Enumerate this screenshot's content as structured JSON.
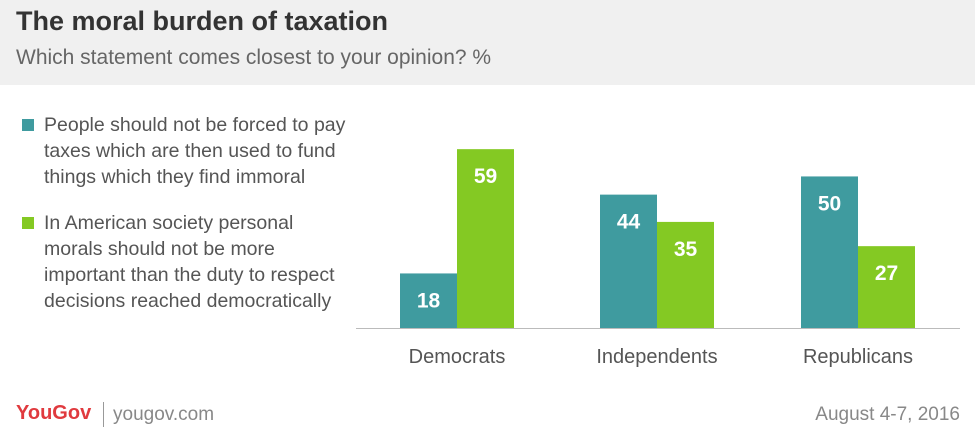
{
  "header": {
    "title": "The moral burden of taxation",
    "subtitle": "Which statement comes closest to your opinion? %"
  },
  "footer": {
    "brand": "YouGov",
    "site": "yougov.com",
    "date": "August 4-7, 2016"
  },
  "colors": {
    "teal": "#3f9b9f",
    "green": "#84c923",
    "header_bg": "#f0f0f0",
    "brand_red": "#e03a3e"
  },
  "chart_data": {
    "type": "bar",
    "title": "The moral burden of taxation",
    "subtitle": "Which statement comes closest to your opinion? %",
    "categories": [
      "Democrats",
      "Independents",
      "Republicans"
    ],
    "series": [
      {
        "name": "People should not be forced to pay taxes which are then used to fund things which they find immoral",
        "color": "#3f9b9f",
        "values": [
          18,
          44,
          50
        ]
      },
      {
        "name": "In American society personal morals should not be more important than the duty to respect decisions reached democratically",
        "color": "#84c923",
        "values": [
          59,
          35,
          27
        ]
      }
    ],
    "ylim": [
      0,
      64
    ],
    "grid": false,
    "legend_position": "left"
  }
}
